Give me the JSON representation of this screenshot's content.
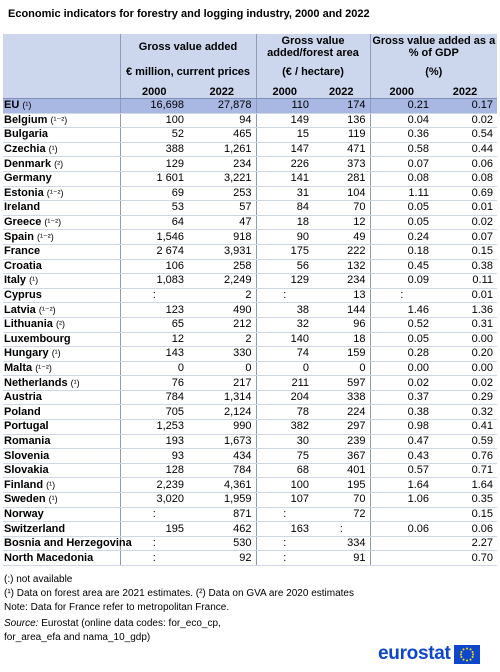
{
  "title": "Economic indicators for forestry and logging industry, 2000 and 2022",
  "headers": {
    "group1": "Gross value added",
    "group2": "Gross value added/forest area",
    "group3": "Gross value added as a % of GDP",
    "unit1": "€ million, current prices",
    "unit2": "(€ / hectare)",
    "unit3": "(%)",
    "years": [
      "2000",
      "2022",
      "2000",
      "2022",
      "2000",
      "2022"
    ]
  },
  "rows": [
    {
      "name": "EU",
      "note": "(¹)",
      "values": [
        "16,698",
        "27,878",
        "110",
        "174",
        "0.21",
        "0.17"
      ],
      "eu": true
    },
    {
      "name": "Belgium",
      "note": "(¹⁻²)",
      "values": [
        "100",
        "94",
        "149",
        "136",
        "0.04",
        "0.02"
      ]
    },
    {
      "name": "Bulgaria",
      "note": "",
      "values": [
        "52",
        "465",
        "15",
        "119",
        "0.36",
        "0.54"
      ]
    },
    {
      "name": "Czechia",
      "note": "(¹)",
      "values": [
        "388",
        "1,261",
        "147",
        "471",
        "0.58",
        "0.44"
      ]
    },
    {
      "name": "Denmark",
      "note": "(²)",
      "values": [
        "129",
        "234",
        "226",
        "373",
        "0.07",
        "0.06"
      ]
    },
    {
      "name": "Germany",
      "note": "",
      "values": [
        "1 601",
        "3,221",
        "141",
        "281",
        "0.08",
        "0.08"
      ]
    },
    {
      "name": "Estonia",
      "note": "(¹⁻²)",
      "values": [
        "69",
        "253",
        "31",
        "104",
        "1.11",
        "0.69"
      ]
    },
    {
      "name": "Ireland",
      "note": "",
      "values": [
        "53",
        "57",
        "84",
        "70",
        "0.05",
        "0.01"
      ]
    },
    {
      "name": "Greece",
      "note": "(¹⁻²)",
      "values": [
        "64",
        "47",
        "18",
        "12",
        "0.05",
        "0.02"
      ]
    },
    {
      "name": "Spain",
      "note": "(¹⁻²)",
      "values": [
        "1,546",
        "918",
        "90",
        "49",
        "0.24",
        "0.07"
      ]
    },
    {
      "name": "France",
      "note": "",
      "values": [
        "2 674",
        "3,931",
        "175",
        "222",
        "0.18",
        "0.15"
      ]
    },
    {
      "name": "Croatia",
      "note": "",
      "values": [
        "106",
        "258",
        "56",
        "132",
        "0.45",
        "0.38"
      ]
    },
    {
      "name": "Italy",
      "note": "(¹)",
      "values": [
        "1,083",
        "2,249",
        "129",
        "234",
        "0.09",
        "0.11"
      ]
    },
    {
      "name": "Cyprus",
      "note": "",
      "values": [
        ":",
        "2",
        ":",
        "13",
        ":",
        "0.01"
      ]
    },
    {
      "name": "Latvia",
      "note": "(¹⁻²)",
      "values": [
        "123",
        "490",
        "38",
        "144",
        "1.46",
        "1.36"
      ]
    },
    {
      "name": "Lithuania",
      "note": "(²)",
      "values": [
        "65",
        "212",
        "32",
        "96",
        "0.52",
        "0.31"
      ]
    },
    {
      "name": "Luxembourg",
      "note": "",
      "values": [
        "12",
        "2",
        "140",
        "18",
        "0.05",
        "0.00"
      ]
    },
    {
      "name": "Hungary",
      "note": "(¹)",
      "values": [
        "143",
        "330",
        "74",
        "159",
        "0.28",
        "0.20"
      ]
    },
    {
      "name": "Malta",
      "note": "(¹⁻²)",
      "values": [
        "0",
        "0",
        "0",
        "0",
        "0.00",
        "0.00"
      ]
    },
    {
      "name": "Netherlands",
      "note": "(¹)",
      "values": [
        "76",
        "217",
        "211",
        "597",
        "0.02",
        "0.02"
      ]
    },
    {
      "name": "Austria",
      "note": "",
      "values": [
        "784",
        "1,314",
        "204",
        "338",
        "0.37",
        "0.29"
      ]
    },
    {
      "name": "Poland",
      "note": "",
      "values": [
        "705",
        "2,124",
        "78",
        "224",
        "0.38",
        "0.32"
      ]
    },
    {
      "name": "Portugal",
      "note": "",
      "values": [
        "1,253",
        "990",
        "382",
        "297",
        "0.98",
        "0.41"
      ]
    },
    {
      "name": "Romania",
      "note": "",
      "values": [
        "193",
        "1,673",
        "30",
        "239",
        "0.47",
        "0.59"
      ]
    },
    {
      "name": "Slovenia",
      "note": "",
      "values": [
        "93",
        "434",
        "75",
        "367",
        "0.43",
        "0.76"
      ]
    },
    {
      "name": "Slovakia",
      "note": "",
      "values": [
        "128",
        "784",
        "68",
        "401",
        "0.57",
        "0.71"
      ]
    },
    {
      "name": "Finland",
      "note": "(¹)",
      "values": [
        "2,239",
        "4,361",
        "100",
        "195",
        "1.64",
        "1.64"
      ]
    },
    {
      "name": "Sweden",
      "note": "(¹)",
      "values": [
        "3,020",
        "1,959",
        "107",
        "70",
        "1.06",
        "0.35"
      ]
    },
    {
      "name": "Norway",
      "note": "",
      "values": [
        ":",
        "871",
        ":",
        "72",
        "",
        "0.15"
      ],
      "gap": true
    },
    {
      "name": "Switzerland",
      "note": "",
      "values": [
        "195",
        "462",
        "163",
        ":",
        "0.06",
        "0.06"
      ]
    },
    {
      "name": "Bosnia and Herzegovina",
      "note": "",
      "values": [
        ":",
        "530",
        ":",
        "334",
        "",
        "2.27"
      ],
      "gap": true
    },
    {
      "name": "North Macedonia",
      "note": "",
      "values": [
        ":",
        "92",
        ":",
        "91",
        "",
        "0.70"
      ]
    }
  ],
  "footnotes": {
    "na": "(:) not available",
    "n1": "(¹) Data on forest area are 2021 estimates. (²) Data on GVA are 2020 estimates",
    "n2": "Note: Data for France refer to metropolitan France.",
    "source_label": "Source:",
    "source1": " Eurostat (online data codes: for_eco_cp,",
    "source2": "for_area_efa and nama_10_gdp)"
  },
  "logo": {
    "text": "eurostat",
    "flag_color": "#0e47cb"
  }
}
